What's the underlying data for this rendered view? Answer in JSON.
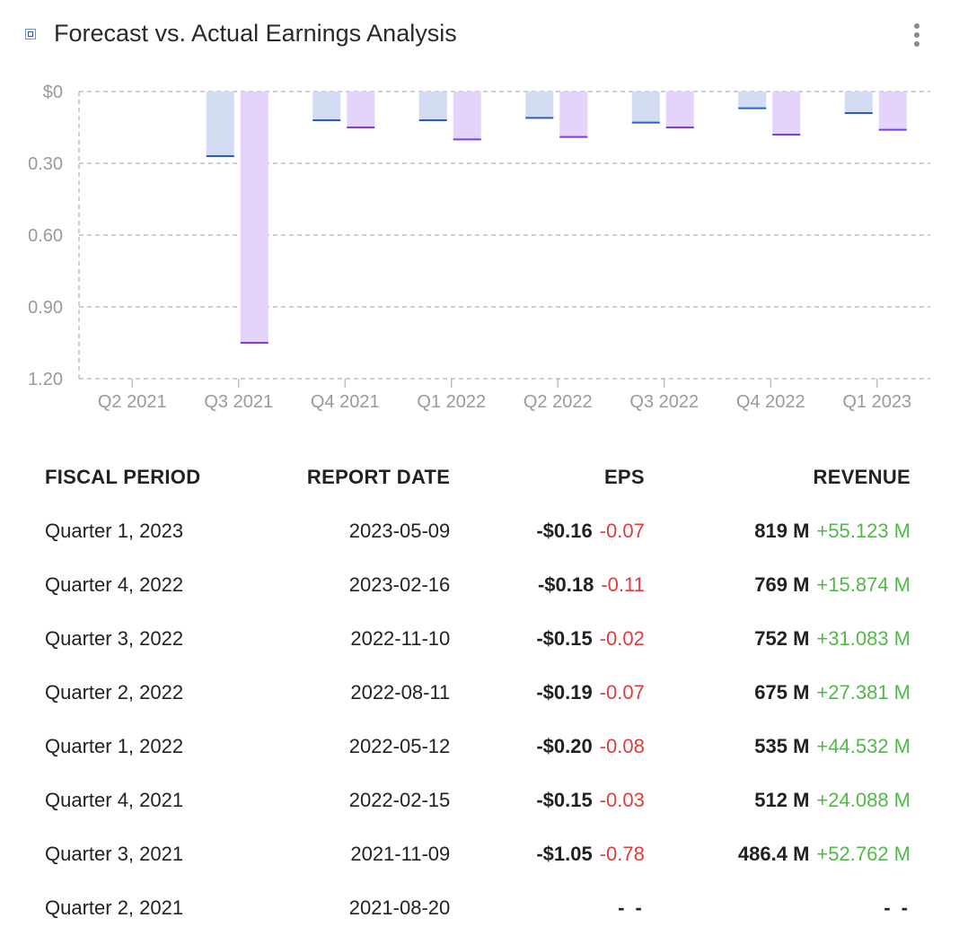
{
  "header": {
    "title": "Forecast vs. Actual Earnings Analysis",
    "menu_icon": "kebab-menu-icon"
  },
  "colors": {
    "forecast_fill": "#d3dcf3",
    "forecast_line": "#2d5bc4",
    "actual_fill": "#e4d4fc",
    "actual_line": "#7a3fe0",
    "negative": "#e23b3b",
    "positive": "#52b84a"
  },
  "chart_data": {
    "type": "bar",
    "categories": [
      "Q2 2021",
      "Q3 2021",
      "Q4 2021",
      "Q1 2022",
      "Q2 2022",
      "Q3 2022",
      "Q4 2022",
      "Q1 2023"
    ],
    "series": [
      {
        "values": [
          null,
          -0.27,
          -0.12,
          -0.12,
          -0.11,
          -0.13,
          -0.07,
          -0.09
        ]
      },
      {
        "values": [
          null,
          -1.05,
          -0.15,
          -0.2,
          -0.19,
          -0.15,
          -0.18,
          -0.16
        ]
      }
    ],
    "y_ticks": [
      0,
      -0.3,
      -0.6,
      -0.9,
      -1.2
    ],
    "y_tick_labels": [
      "$0",
      "0.30",
      "0.60",
      "0.90",
      "1.20"
    ],
    "ylim": [
      -1.2,
      0
    ],
    "grid": true
  },
  "table": {
    "headers": {
      "period": "FISCAL PERIOD",
      "date": "REPORT DATE",
      "eps": "EPS",
      "revenue": "REVENUE"
    },
    "rows": [
      {
        "period": "Quarter 1, 2023",
        "date": "2023-05-09",
        "eps": "-$0.16",
        "eps_surprise": "-0.07",
        "revenue": "819 M",
        "revenue_surprise": "+55.123 M"
      },
      {
        "period": "Quarter 4, 2022",
        "date": "2023-02-16",
        "eps": "-$0.18",
        "eps_surprise": "-0.11",
        "revenue": "769 M",
        "revenue_surprise": "+15.874 M"
      },
      {
        "period": "Quarter 3, 2022",
        "date": "2022-11-10",
        "eps": "-$0.15",
        "eps_surprise": "-0.02",
        "revenue": "752 M",
        "revenue_surprise": "+31.083 M"
      },
      {
        "period": "Quarter 2, 2022",
        "date": "2022-08-11",
        "eps": "-$0.19",
        "eps_surprise": "-0.07",
        "revenue": "675 M",
        "revenue_surprise": "+27.381 M"
      },
      {
        "period": "Quarter 1, 2022",
        "date": "2022-05-12",
        "eps": "-$0.20",
        "eps_surprise": "-0.08",
        "revenue": "535 M",
        "revenue_surprise": "+44.532 M"
      },
      {
        "period": "Quarter 4, 2021",
        "date": "2022-02-15",
        "eps": "-$0.15",
        "eps_surprise": "-0.03",
        "revenue": "512 M",
        "revenue_surprise": "+24.088 M"
      },
      {
        "period": "Quarter 3, 2021",
        "date": "2021-11-09",
        "eps": "-$1.05",
        "eps_surprise": "-0.78",
        "revenue": "486.4 M",
        "revenue_surprise": "+52.762 M"
      },
      {
        "period": "Quarter 2, 2021",
        "date": "2021-08-20",
        "eps_empty": "- -",
        "revenue_empty": "- -"
      }
    ]
  }
}
